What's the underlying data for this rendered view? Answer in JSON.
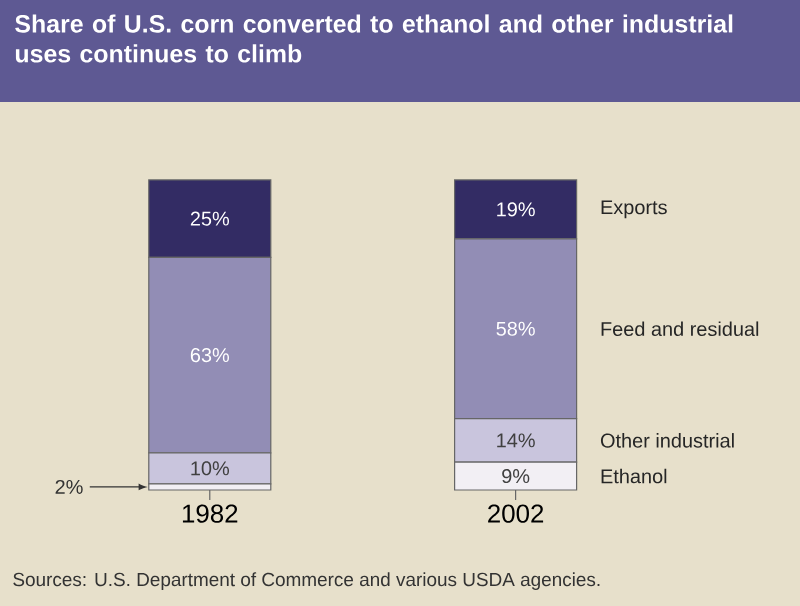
{
  "chart_data": {
    "type": "bar",
    "stacked": true,
    "title": "Share of U.S. corn converted to ethanol and other industrial uses continues to climb",
    "categories": [
      "1982",
      "2002"
    ],
    "series": [
      {
        "name": "Ethanol",
        "color": "#f2eff4",
        "values": [
          2,
          9
        ],
        "value_labels": [
          "2%",
          "9%"
        ]
      },
      {
        "name": "Other industrial",
        "color": "#c9c5dd",
        "values": [
          10,
          14
        ],
        "value_labels": [
          "10%",
          "14%"
        ]
      },
      {
        "name": "Feed and residual",
        "color": "#928db5",
        "values": [
          63,
          58
        ],
        "value_labels": [
          "63%",
          "58%"
        ]
      },
      {
        "name": "Exports",
        "color": "#332c64",
        "values": [
          25,
          19
        ],
        "value_labels": [
          "25%",
          "19%"
        ]
      }
    ],
    "annotations": [
      "Sources: U.S. Department of Commerce and various USDA agencies."
    ]
  }
}
